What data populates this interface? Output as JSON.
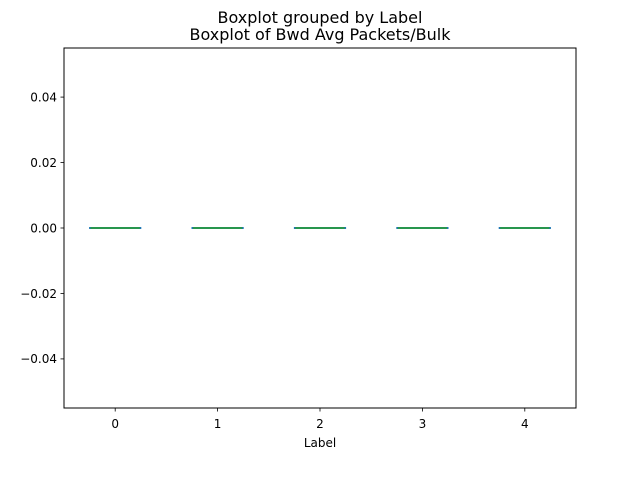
{
  "chart_data": {
    "type": "box",
    "suptitle": "Boxplot grouped by Label",
    "title": "Boxplot of Bwd Avg Packets/Bulk",
    "xlabel": "Label",
    "ylabel": "",
    "categories": [
      "0",
      "1",
      "2",
      "3",
      "4"
    ],
    "boxes": [
      {
        "label": "0",
        "min": 0,
        "q1": 0,
        "median": 0,
        "q3": 0,
        "max": 0
      },
      {
        "label": "1",
        "min": 0,
        "q1": 0,
        "median": 0,
        "q3": 0,
        "max": 0
      },
      {
        "label": "2",
        "min": 0,
        "q1": 0,
        "median": 0,
        "q3": 0,
        "max": 0
      },
      {
        "label": "3",
        "min": 0,
        "q1": 0,
        "median": 0,
        "q3": 0,
        "max": 0
      },
      {
        "label": "4",
        "min": 0,
        "q1": 0,
        "median": 0,
        "q3": 0,
        "max": 0
      }
    ],
    "yticks": [
      -0.04,
      -0.02,
      0.0,
      0.02,
      0.04
    ],
    "ytick_labels": [
      "−0.04",
      "−0.02",
      "0.00",
      "0.02",
      "0.04"
    ],
    "ylim": [
      -0.055,
      0.055
    ],
    "grid": false,
    "box_color": "#1f77b4",
    "median_color": "#2ca02c"
  }
}
